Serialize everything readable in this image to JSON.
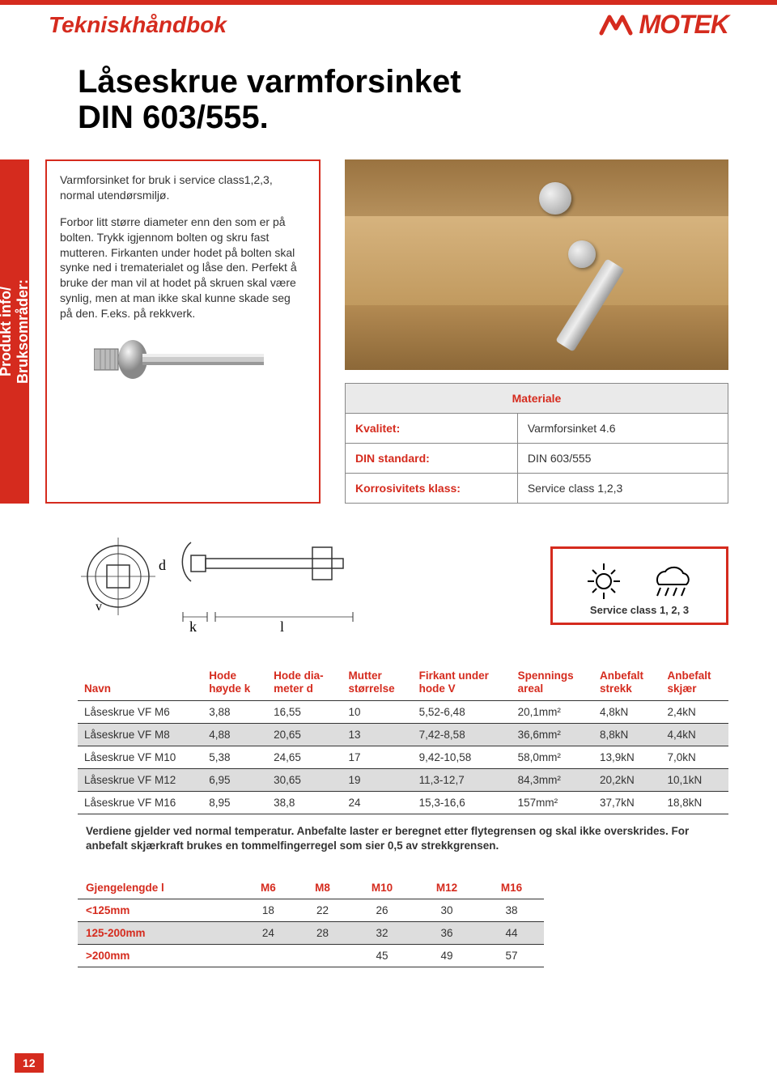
{
  "header": {
    "handbook_title": "Tekniskhåndbok",
    "brand": "MOTEK"
  },
  "page": {
    "main_title": "Låseskrue varmforsinket\nDIN 603/555.",
    "sidebar_label": "Produkt info/\nBruksområder:",
    "page_number": "12"
  },
  "description": {
    "intro": "Varmforsinket for bruk i service class1,2,3, normal utendørsmiljø.",
    "body": "Forbor litt større diameter enn den som er på bolten. Trykk igjennom bolten og skru fast mutteren. Firkanten under hodet på bolten skal synke ned i trematerialet og låse den. Perfekt å bruke der man vil at hodet på skruen skal være synlig, men at man ikke skal kunne skade seg på den. F.eks. på rekkverk."
  },
  "material_table": {
    "header": "Materiale",
    "rows": [
      {
        "key": "Kvalitet:",
        "value": "Varmforsinket 4.6"
      },
      {
        "key": "DIN standard:",
        "value": "DIN 603/555"
      },
      {
        "key": "Korrosivitets klass:",
        "value": "Service class 1,2,3"
      }
    ]
  },
  "diagram": {
    "labels": {
      "d": "d",
      "k": "k",
      "l": "l",
      "v": "v"
    }
  },
  "service_box": {
    "caption": "Service class 1, 2, 3",
    "icons": {
      "sun": "☀",
      "rain": "☁"
    }
  },
  "spec_table": {
    "columns": [
      "Navn",
      "Hode\nhøyde k",
      "Hode dia-\nmeter d",
      "Mutter\nstørrelse",
      "Firkant under\nhode V",
      "Spennings\nareal",
      "Anbefalt\nstrekk",
      "Anbefalt\nskjær"
    ],
    "rows": [
      [
        "Låseskrue VF M6",
        "3,88",
        "16,55",
        "10",
        "5,52-6,48",
        "20,1mm²",
        "4,8kN",
        "2,4kN"
      ],
      [
        "Låseskrue VF M8",
        "4,88",
        "20,65",
        "13",
        "7,42-8,58",
        "36,6mm²",
        "8,8kN",
        "4,4kN"
      ],
      [
        "Låseskrue VF M10",
        "5,38",
        "24,65",
        "17",
        "9,42-10,58",
        "58,0mm²",
        "13,9kN",
        "7,0kN"
      ],
      [
        "Låseskrue VF M12",
        "6,95",
        "30,65",
        "19",
        "11,3-12,7",
        "84,3mm²",
        "20,2kN",
        "10,1kN"
      ],
      [
        "Låseskrue VF M16",
        "8,95",
        "38,8",
        "24",
        "15,3-16,6",
        "157mm²",
        "37,7kN",
        "18,8kN"
      ]
    ],
    "note": "Verdiene gjelder ved normal temperatur. Anbefalte laster er beregnet etter flytegrensen og skal ikke overskrides. For anbefalt skjærkraft brukes en tommelfingerregel som sier 0,5 av strekkgrensen."
  },
  "thread_table": {
    "columns": [
      "Gjengelengde l",
      "M6",
      "M8",
      "M10",
      "M12",
      "M16"
    ],
    "rows": [
      [
        "<125mm",
        "18",
        "22",
        "26",
        "30",
        "38"
      ],
      [
        "125-200mm",
        "24",
        "28",
        "32",
        "36",
        "44"
      ],
      [
        ">200mm",
        "",
        "",
        "45",
        "49",
        "57"
      ]
    ]
  },
  "colors": {
    "brand_red": "#d52b1e",
    "alt_row": "#dddddd",
    "header_grey": "#eaeaea"
  }
}
